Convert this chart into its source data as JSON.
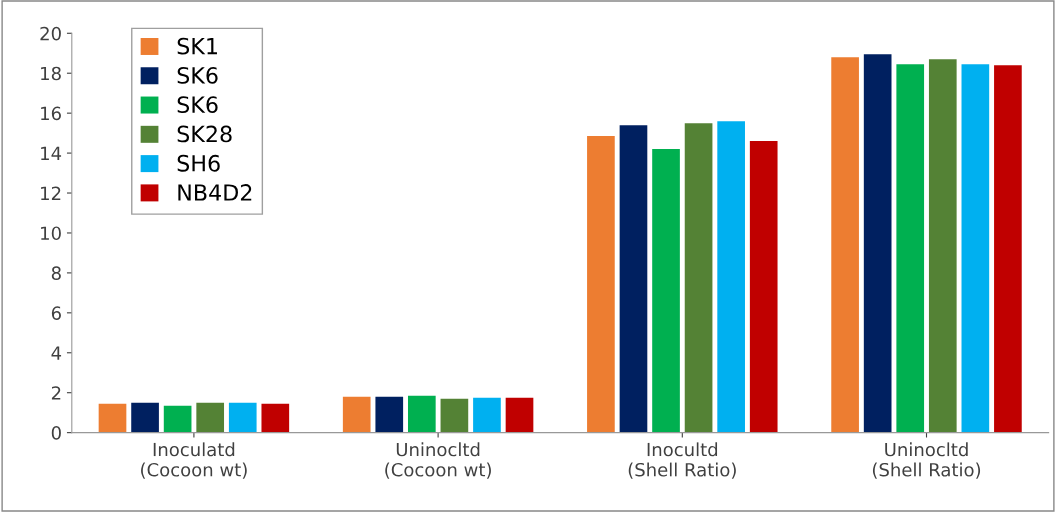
{
  "chart_data": {
    "type": "bar",
    "categories": [
      "Inoculatd (Cocoon wt)",
      "Uninocltd (Cocoon wt)",
      "Inocultd (Shell Ratio)",
      "Uninocltd (Shell Ratio)"
    ],
    "series": [
      {
        "name": "SK1",
        "color": "#ed7d31",
        "values": [
          1.45,
          1.8,
          14.85,
          18.8
        ]
      },
      {
        "name": "SK6",
        "color": "#002060",
        "values": [
          1.5,
          1.8,
          15.4,
          18.95
        ]
      },
      {
        "name": "SK6",
        "color": "#00b050",
        "values": [
          1.35,
          1.85,
          14.2,
          18.45
        ]
      },
      {
        "name": "SK28",
        "color": "#548235",
        "values": [
          1.5,
          1.7,
          15.5,
          18.7
        ]
      },
      {
        "name": "SH6",
        "color": "#00b0f0",
        "values": [
          1.5,
          1.75,
          15.6,
          18.45
        ]
      },
      {
        "name": "NB4D2",
        "color": "#c00000",
        "values": [
          1.45,
          1.75,
          14.6,
          18.4
        ]
      }
    ],
    "ylim": [
      0,
      20
    ],
    "yticks": [
      0,
      2,
      4,
      6,
      8,
      10,
      12,
      14,
      16,
      18,
      20
    ],
    "grid": false,
    "legend": "top left"
  }
}
